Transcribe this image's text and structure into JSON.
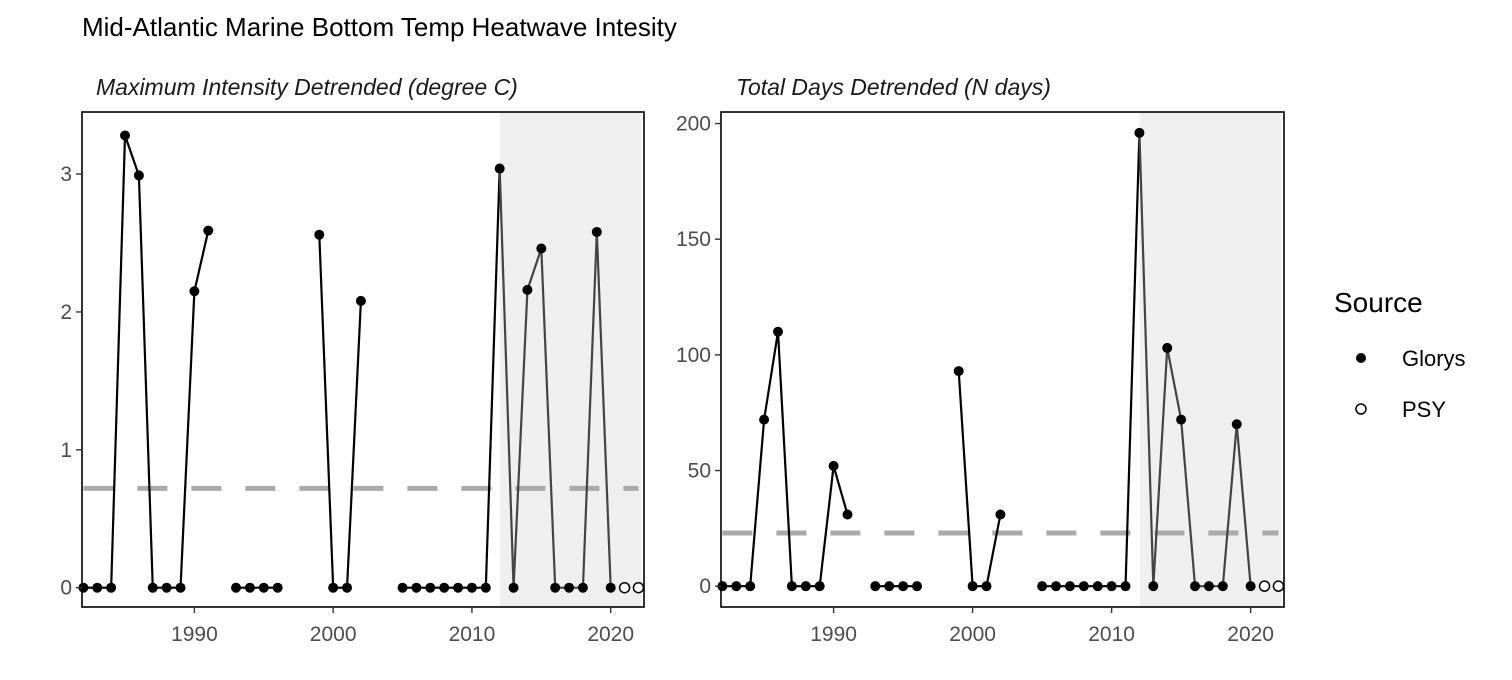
{
  "title": "Mid-Atlantic Marine Bottom Temp Heatwave Intesity",
  "legend": {
    "title": "Source",
    "entries": [
      {
        "label": "Glorys",
        "marker": "filled-circle"
      },
      {
        "label": "PSY",
        "marker": "open-circle"
      }
    ]
  },
  "colors": {
    "line_main": "#000000",
    "line_recent": "#444444",
    "mean_line": "#aaaaaa",
    "shade": "#efefef"
  },
  "chart_data": [
    {
      "type": "line",
      "title": "Maximum Intensity Detrended (degree C)",
      "xlabel": "",
      "ylabel": "",
      "xlim": [
        1981.9,
        2022.4
      ],
      "ylim": [
        -0.14,
        3.45
      ],
      "xticks": [
        1990,
        2000,
        2010,
        2020
      ],
      "yticks": [
        0,
        1,
        2,
        3
      ],
      "grid": false,
      "shaded_region": [
        2012,
        2022.2
      ],
      "mean_line": 0.72,
      "series": [
        {
          "name": "Glorys",
          "x": [
            1982,
            1983,
            1984,
            1985,
            1986,
            1987,
            1988,
            1989,
            1990,
            1991,
            1992,
            1993,
            1994,
            1995,
            1996,
            1997,
            1998,
            1999,
            2000,
            2001,
            2002,
            2003,
            2004,
            2005,
            2006,
            2007,
            2008,
            2009,
            2010,
            2011,
            2012,
            2013,
            2014,
            2015,
            2016,
            2017,
            2018,
            2019,
            2020
          ],
          "values": [
            0,
            0,
            0,
            3.28,
            2.99,
            0,
            0,
            0,
            2.15,
            2.59,
            null,
            0,
            0,
            0,
            0,
            null,
            null,
            2.56,
            0,
            0,
            2.08,
            null,
            null,
            0,
            0,
            0,
            0,
            0,
            0,
            0,
            3.04,
            0,
            2.16,
            2.46,
            0,
            0,
            0,
            2.58,
            0
          ]
        },
        {
          "name": "PSY",
          "x": [
            2021,
            2022
          ],
          "values": [
            0,
            0
          ]
        }
      ]
    },
    {
      "type": "line",
      "title": "Total Days Detrended (N days)",
      "xlabel": "",
      "ylabel": "",
      "xlim": [
        1981.9,
        2022.4
      ],
      "ylim": [
        -9,
        205
      ],
      "xticks": [
        1990,
        2000,
        2010,
        2020
      ],
      "yticks": [
        0,
        50,
        100,
        150,
        200
      ],
      "grid": false,
      "shaded_region": [
        2012,
        2022.2
      ],
      "mean_line": 23,
      "series": [
        {
          "name": "Glorys",
          "x": [
            1982,
            1983,
            1984,
            1985,
            1986,
            1987,
            1988,
            1989,
            1990,
            1991,
            1992,
            1993,
            1994,
            1995,
            1996,
            1997,
            1998,
            1999,
            2000,
            2001,
            2002,
            2003,
            2004,
            2005,
            2006,
            2007,
            2008,
            2009,
            2010,
            2011,
            2012,
            2013,
            2014,
            2015,
            2016,
            2017,
            2018,
            2019,
            2020
          ],
          "values": [
            0,
            0,
            0,
            72,
            110,
            0,
            0,
            0,
            52,
            31,
            null,
            0,
            0,
            0,
            0,
            null,
            null,
            93,
            0,
            0,
            31,
            null,
            null,
            0,
            0,
            0,
            0,
            0,
            0,
            0,
            196,
            0,
            103,
            72,
            0,
            0,
            0,
            70,
            0
          ]
        },
        {
          "name": "PSY",
          "x": [
            2021,
            2022
          ],
          "values": [
            0,
            0
          ]
        }
      ]
    }
  ]
}
